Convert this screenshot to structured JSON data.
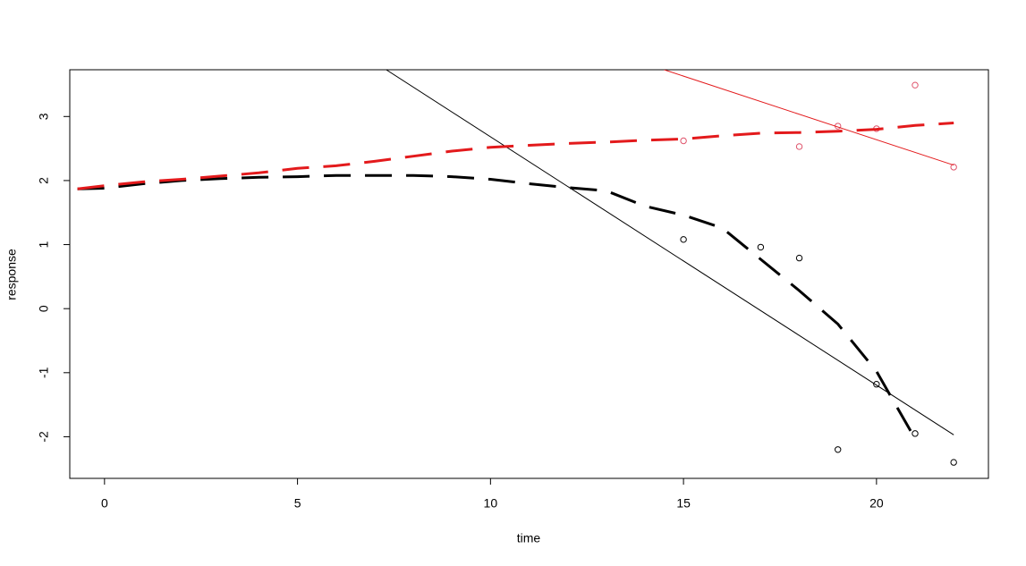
{
  "chart_data": {
    "type": "line",
    "xlabel": "time",
    "ylabel": "response",
    "xlim": [
      -0.9,
      22.9
    ],
    "ylim": [
      -2.65,
      3.73
    ],
    "xticks": [
      0,
      5,
      10,
      15,
      20
    ],
    "yticks": [
      -2,
      -1,
      0,
      1,
      2,
      3
    ],
    "series": [
      {
        "mode": "points",
        "color": "#000000",
        "x": [
          15,
          17,
          18,
          19,
          20,
          21,
          22
        ],
        "values": [
          1.08,
          0.96,
          0.79,
          -2.2,
          -1.18,
          -1.95,
          -2.4
        ]
      },
      {
        "mode": "points",
        "color": "#df536b",
        "x": [
          15,
          18,
          19,
          20,
          21,
          22
        ],
        "values": [
          2.62,
          2.53,
          2.85,
          2.81,
          3.49,
          2.21
        ]
      },
      {
        "mode": "solid",
        "color": "#000000",
        "x": [
          7.3,
          22
        ],
        "values": [
          3.73,
          -1.97
        ]
      },
      {
        "mode": "solid",
        "color": "#e31a1c",
        "x": [
          14.5,
          22
        ],
        "values": [
          3.73,
          2.24
        ]
      },
      {
        "mode": "dashed",
        "color": "#000000",
        "x": [
          -0.7,
          0,
          1,
          2,
          3,
          4,
          5,
          6,
          7,
          8,
          9,
          10,
          11,
          12,
          13,
          14,
          15,
          16,
          17,
          18,
          19,
          20,
          21
        ],
        "values": [
          1.87,
          1.88,
          1.95,
          2.0,
          2.03,
          2.05,
          2.06,
          2.08,
          2.08,
          2.08,
          2.06,
          2.02,
          1.95,
          1.89,
          1.84,
          1.6,
          1.46,
          1.26,
          0.77,
          0.28,
          -0.24,
          -0.98,
          -2.03
        ]
      },
      {
        "mode": "dashed",
        "color": "#e31a1c",
        "x": [
          -0.7,
          0,
          1,
          2,
          3,
          4,
          5,
          6,
          7,
          8,
          9,
          10,
          11,
          12,
          13,
          14,
          15,
          16,
          17,
          18,
          19,
          20,
          21,
          22
        ],
        "values": [
          1.87,
          1.92,
          1.98,
          2.02,
          2.07,
          2.12,
          2.19,
          2.23,
          2.3,
          2.38,
          2.46,
          2.52,
          2.55,
          2.58,
          2.6,
          2.63,
          2.65,
          2.7,
          2.74,
          2.75,
          2.77,
          2.8,
          2.86,
          2.9
        ]
      }
    ]
  }
}
